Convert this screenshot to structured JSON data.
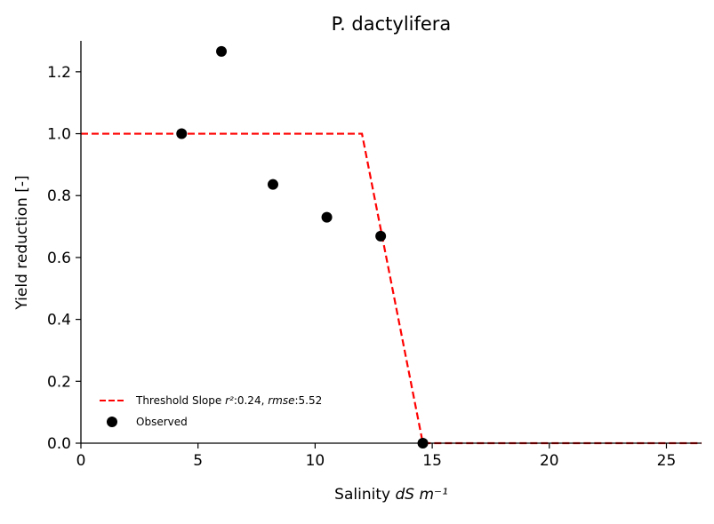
{
  "chart_data": {
    "type": "scatter",
    "title": "P. dactylifera",
    "xlabel": "Salinity dS m⁻¹",
    "ylabel": "Yield reduction [-]",
    "xlim": [
      0,
      26.5
    ],
    "ylim": [
      0,
      1.3
    ],
    "xticks": [
      "0",
      "5",
      "10",
      "15",
      "20",
      "25"
    ],
    "yticks": [
      "0.0",
      "0.2",
      "0.4",
      "0.6",
      "0.8",
      "1.0",
      "1.2"
    ],
    "grid": false,
    "legend_position": "lower-left",
    "series": [
      {
        "name": "Threshold Slope r²:0.24, rmse:5.52",
        "kind": "line",
        "style": "dashed",
        "color": "#ff0000",
        "x": [
          0,
          12.0,
          14.6,
          26.5
        ],
        "y": [
          1.0,
          1.0,
          0.0,
          0.0
        ]
      },
      {
        "name": "Observed",
        "kind": "scatter",
        "color": "#000000",
        "x": [
          4.3,
          6.0,
          8.2,
          10.5,
          12.8,
          14.6
        ],
        "y": [
          1.0,
          1.266,
          0.836,
          0.73,
          0.669,
          0.0
        ]
      }
    ]
  }
}
